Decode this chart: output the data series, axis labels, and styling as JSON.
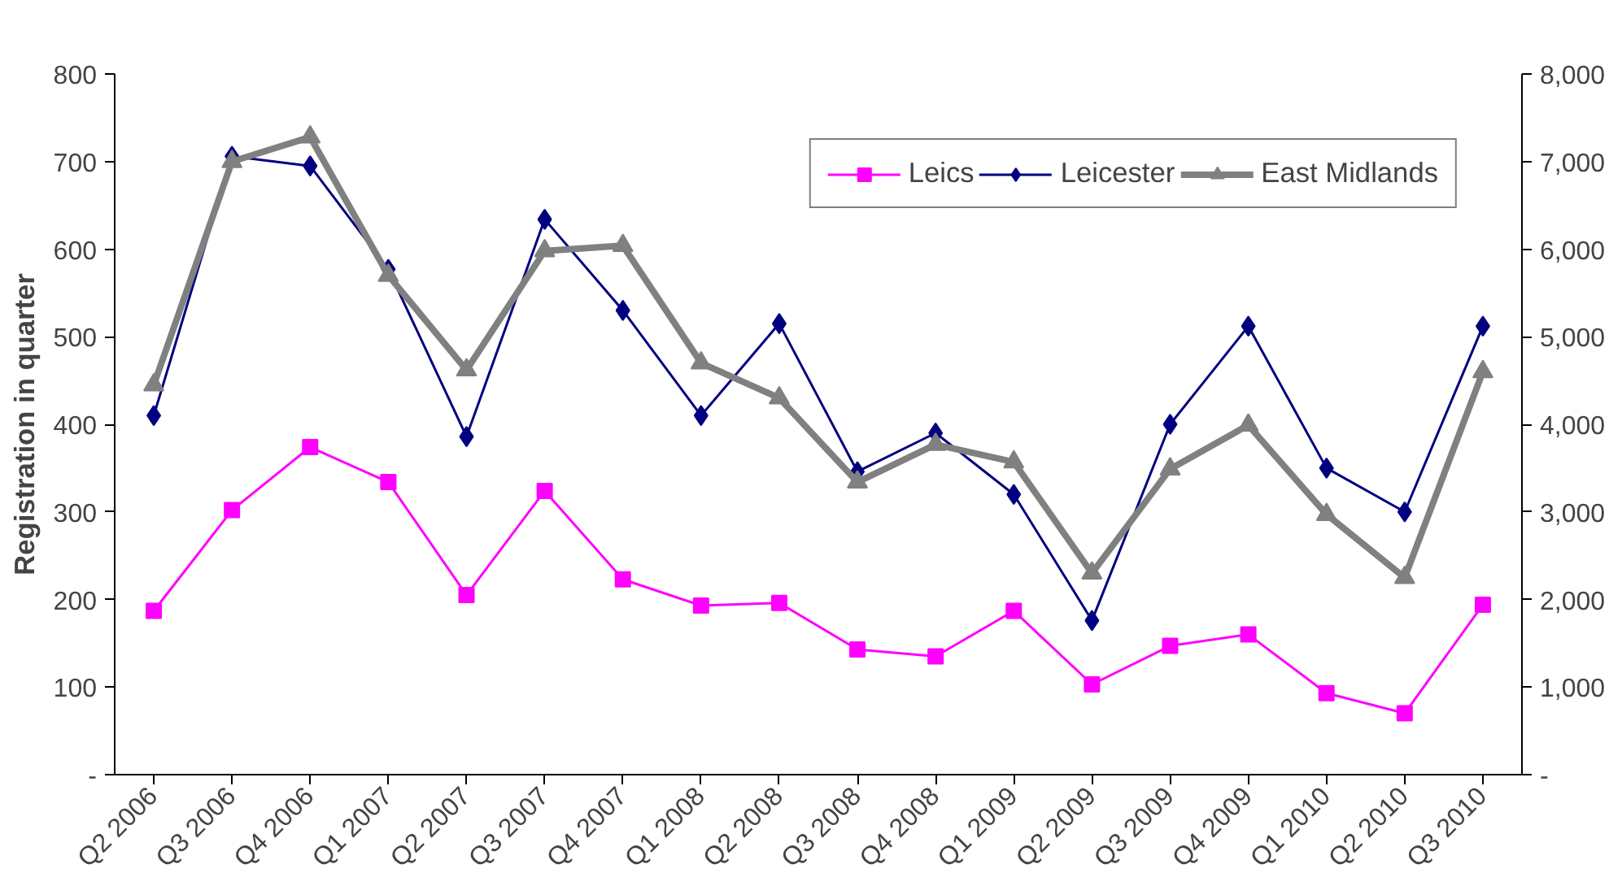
{
  "chart_data": {
    "type": "line",
    "ylabel": "Registration in quarter",
    "categories": [
      "Q2 2006",
      "Q3 2006",
      "Q4 2006",
      "Q1 2007",
      "Q2 2007",
      "Q3 2007",
      "Q4 2007",
      "Q1 2008",
      "Q2 2008",
      "Q3 2008",
      "Q4 2008",
      "Q1 2009",
      "Q2 2009",
      "Q3 2009",
      "Q4 2009",
      "Q1 2010",
      "Q2 2010",
      "Q3 2010"
    ],
    "series": [
      {
        "name": "Leics",
        "color": "#ff00ff",
        "marker": "square",
        "values": [
          187,
          302,
          374,
          334,
          205,
          324,
          223,
          193,
          196,
          143,
          135,
          187,
          103,
          147,
          160,
          93,
          70,
          194
        ]
      },
      {
        "name": "Leicester",
        "color": "#000080",
        "marker": "diamond",
        "values": [
          410,
          706,
          695,
          577,
          386,
          634,
          530,
          410,
          515,
          346,
          390,
          320,
          176,
          400,
          512,
          350,
          300,
          512
        ]
      },
      {
        "name": "East Midlands",
        "color": "#808080",
        "marker": "triangle",
        "axis": "y2",
        "values": [
          4450,
          7000,
          7280,
          5700,
          4620,
          5980,
          6040,
          4700,
          4300,
          3340,
          3770,
          3570,
          2300,
          3490,
          3990,
          2970,
          2250,
          4600
        ]
      }
    ],
    "ylim": [
      0,
      800
    ],
    "yticks": [
      {
        "value": 0,
        "label": "-"
      },
      100,
      200,
      300,
      400,
      500,
      600,
      700,
      800
    ],
    "y2lim": [
      0,
      8000
    ],
    "y2ticks": [
      {
        "value": 0,
        "label": "-"
      },
      {
        "value": 1000,
        "label": "1,000"
      },
      {
        "value": 2000,
        "label": "2,000"
      },
      {
        "value": 3000,
        "label": "3,000"
      },
      {
        "value": 4000,
        "label": "4,000"
      },
      {
        "value": 5000,
        "label": "5,000"
      },
      {
        "value": 6000,
        "label": "6,000"
      },
      {
        "value": 7000,
        "label": "7,000"
      },
      {
        "value": 8000,
        "label": "8,000"
      }
    ],
    "legend": "top right",
    "grid": false
  }
}
